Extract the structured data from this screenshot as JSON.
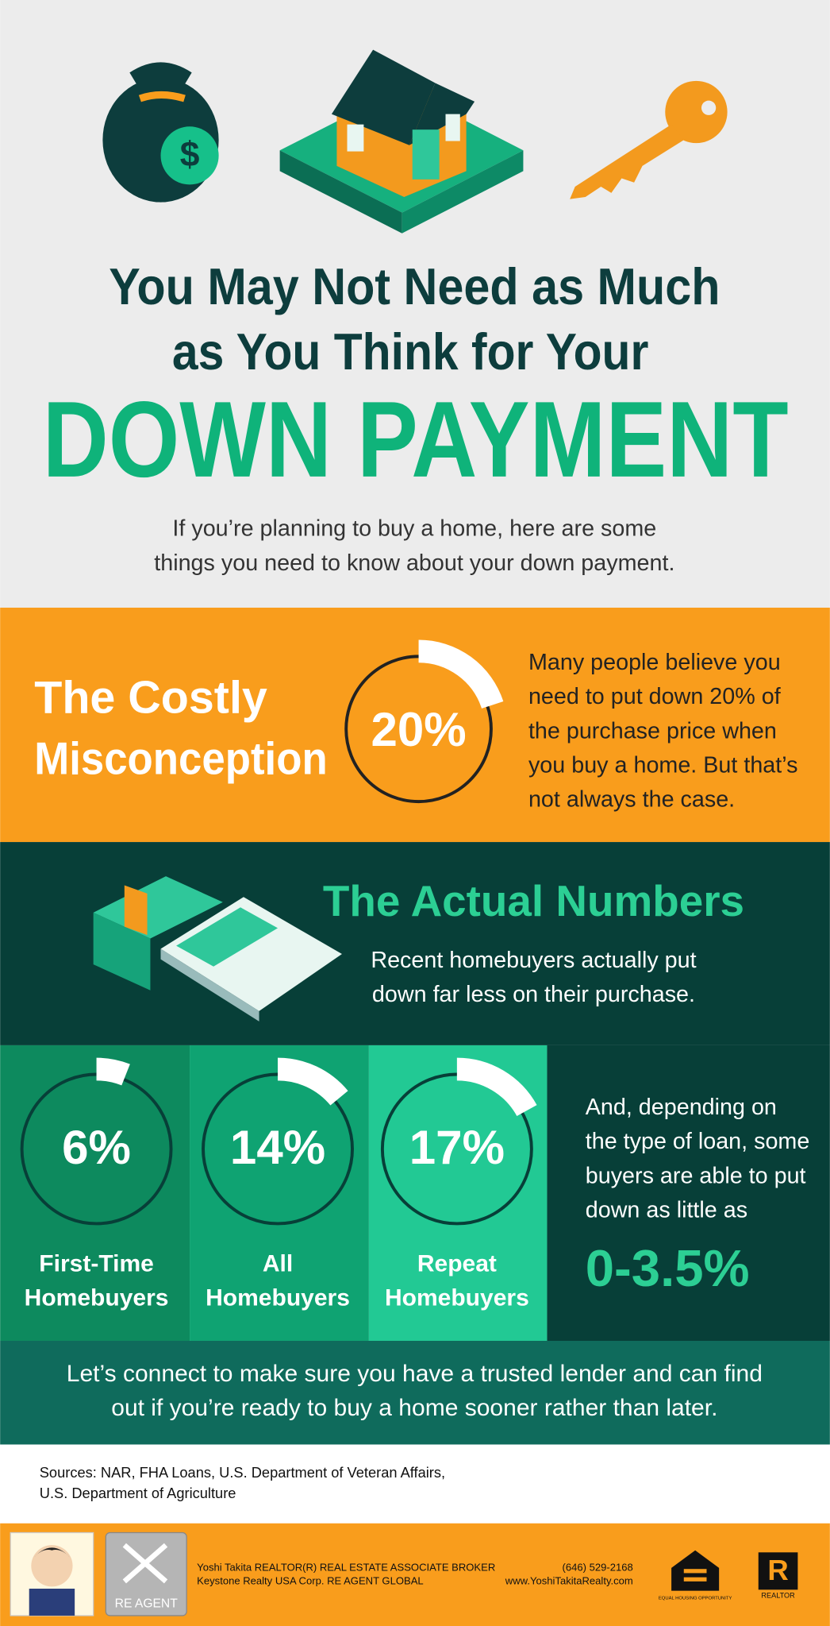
{
  "header": {
    "title_lines": [
      "You May Not Need as Much",
      "as You Think for Your"
    ],
    "headline": "DOWN PAYMENT",
    "intro_lines": [
      "If you’re planning to buy a home, here are some",
      "things you need to know about your down payment."
    ]
  },
  "misconception": {
    "heading_lines": [
      "The Costly",
      "Misconception"
    ],
    "stat": {
      "value": 20,
      "label": "20%"
    },
    "text_lines": [
      "Many people believe you",
      "need to put down 20% of",
      "the purchase price when",
      "you buy a home. But that’s",
      "not always the case."
    ]
  },
  "actual_numbers": {
    "heading": "The Actual Numbers",
    "text_lines": [
      "Recent homebuyers actually put",
      "down far less on their purchase."
    ],
    "stats": [
      {
        "value": 6,
        "label": "6%",
        "caption_lines": [
          "First-Time",
          "Homebuyers"
        ]
      },
      {
        "value": 14,
        "label": "14%",
        "caption_lines": [
          "All",
          "Homebuyers"
        ]
      },
      {
        "value": 17,
        "label": "17%",
        "caption_lines": [
          "Repeat",
          "Homebuyers"
        ]
      }
    ],
    "note_lines": [
      "And, depending on",
      "the type of loan, some",
      "buyers are able to put",
      "down as little as"
    ],
    "note_highlight": "0-3.5%"
  },
  "cta": {
    "lines": [
      "Let’s connect to make sure you have a trusted lender and can find",
      "out if you’re ready to buy a home sooner rather than later."
    ]
  },
  "sources": {
    "lines": [
      "Sources: NAR, FHA Loans, U.S. Department of Veteran Affairs,",
      "U.S. Department of Agriculture"
    ]
  },
  "footer": {
    "agent_lines": [
      "Yoshi Takita REALTOR(R) REAL ESTATE ASSOCIATE BROKER",
      "Keystone Realty USA Corp.  RE AGENT GLOBAL"
    ],
    "contact_lines": [
      "(646) 529-2168",
      "www.YoshiTakitaRealty.com"
    ],
    "logo_labels": [
      "RE AGENT",
      "EQUAL HOUSING OPPORTUNITY",
      "REALTOR"
    ]
  }
}
